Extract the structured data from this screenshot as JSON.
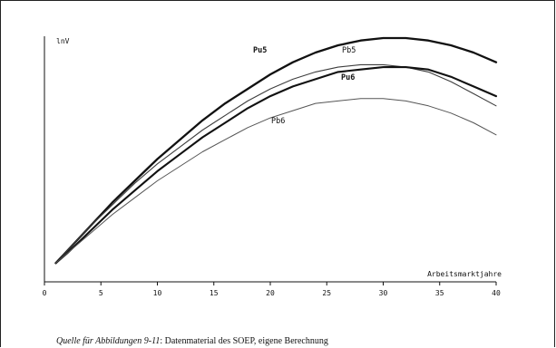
{
  "chart_data": {
    "type": "line",
    "ylabel": "lnV",
    "xlabel": "Arbeitsmarktjahre",
    "xlim": [
      0,
      40
    ],
    "xticks": [
      0,
      5,
      10,
      15,
      20,
      25,
      30,
      35,
      40
    ],
    "ylim": [
      0,
      1
    ],
    "y_tick_labels": false,
    "grid": false,
    "series": [
      {
        "name": "Pu5",
        "label_bold": true,
        "stroke": "#111111",
        "x": [
          1,
          2,
          4,
          6,
          8,
          10,
          12,
          14,
          16,
          18,
          20,
          22,
          24,
          26,
          28,
          30,
          32,
          34,
          36,
          38,
          40
        ],
        "y": [
          0.04,
          0.09,
          0.19,
          0.29,
          0.38,
          0.47,
          0.55,
          0.63,
          0.7,
          0.76,
          0.82,
          0.87,
          0.91,
          0.94,
          0.96,
          0.97,
          0.97,
          0.96,
          0.94,
          0.91,
          0.87
        ]
      },
      {
        "name": "Pb5",
        "label_bold": false,
        "stroke": "#3d3d3d",
        "x": [
          1,
          2,
          4,
          6,
          8,
          10,
          12,
          14,
          16,
          18,
          20,
          22,
          24,
          26,
          28,
          30,
          32,
          34,
          36,
          38,
          40
        ],
        "y": [
          0.04,
          0.09,
          0.19,
          0.28,
          0.37,
          0.45,
          0.52,
          0.59,
          0.65,
          0.71,
          0.76,
          0.8,
          0.83,
          0.85,
          0.86,
          0.86,
          0.85,
          0.83,
          0.79,
          0.74,
          0.69
        ]
      },
      {
        "name": "Pu6",
        "label_bold": true,
        "stroke": "#111111",
        "x": [
          1,
          2,
          4,
          6,
          8,
          10,
          12,
          14,
          16,
          18,
          20,
          22,
          24,
          26,
          28,
          30,
          32,
          34,
          36,
          38,
          40
        ],
        "y": [
          0.04,
          0.08,
          0.17,
          0.26,
          0.34,
          0.42,
          0.49,
          0.56,
          0.62,
          0.68,
          0.73,
          0.77,
          0.8,
          0.83,
          0.84,
          0.85,
          0.85,
          0.84,
          0.81,
          0.77,
          0.73
        ]
      },
      {
        "name": "Pb6",
        "label_bold": false,
        "stroke": "#555555",
        "x": [
          1,
          2,
          4,
          6,
          8,
          10,
          12,
          14,
          16,
          18,
          20,
          22,
          24,
          26,
          28,
          30,
          32,
          34,
          36,
          38,
          40
        ],
        "y": [
          0.04,
          0.08,
          0.16,
          0.24,
          0.31,
          0.38,
          0.44,
          0.5,
          0.55,
          0.6,
          0.64,
          0.67,
          0.7,
          0.71,
          0.72,
          0.72,
          0.71,
          0.69,
          0.66,
          0.62,
          0.57
        ]
      }
    ]
  },
  "source_note": {
    "prefix": "Quelle für Abbildungen 9-11",
    "text": ": Datenmaterial des SOEP, eigene Berechnung"
  },
  "colors": {
    "frame": "#222222",
    "axis": "#111111"
  }
}
